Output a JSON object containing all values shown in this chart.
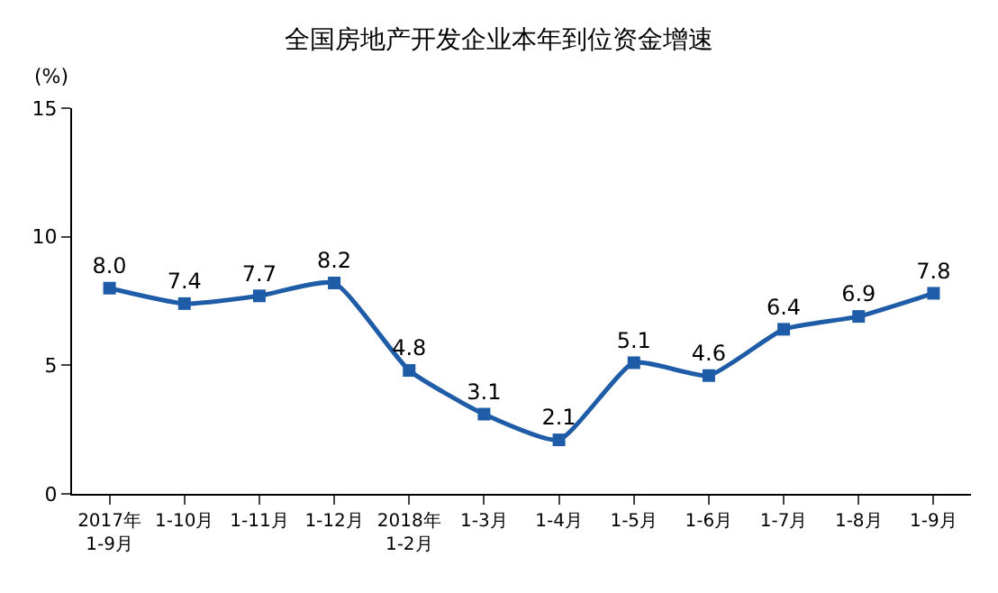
{
  "chart_data": {
    "type": "line",
    "title": "全国房地产开发企业本年到位资金增速",
    "ylabel": "(%)",
    "categories": [
      "2017年\n1-9月",
      "1-10月",
      "1-11月",
      "1-12月",
      "2018年\n1-2月",
      "1-3月",
      "1-4月",
      "1-5月",
      "1-6月",
      "1-7月",
      "1-8月",
      "1-9月"
    ],
    "series": [
      {
        "color": "#1f5ca8",
        "values": [
          8.0,
          7.4,
          7.7,
          8.2,
          4.8,
          3.1,
          2.1,
          5.1,
          4.6,
          6.4,
          6.9,
          7.8
        ],
        "value_labels": [
          "8.0",
          "7.4",
          "7.7",
          "8.2",
          "4.8",
          "3.1",
          "2.1",
          "5.1",
          "4.6",
          "6.4",
          "6.9",
          "7.8"
        ]
      }
    ],
    "ylim": [
      0,
      15
    ],
    "yticks": [
      0,
      5,
      10,
      15
    ],
    "legend": false,
    "marker": "square",
    "line_style": "solid"
  }
}
